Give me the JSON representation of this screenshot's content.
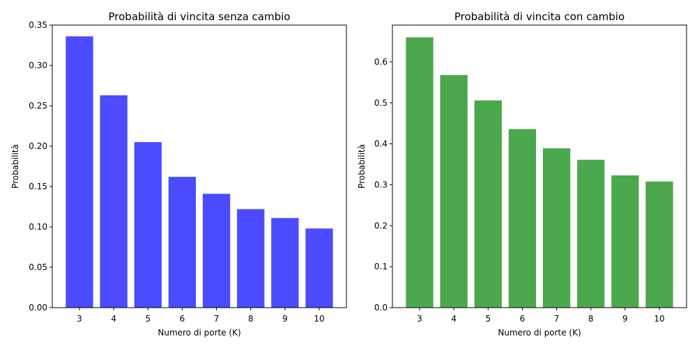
{
  "chart_data": [
    {
      "type": "bar",
      "title": "Probabilità di vincita senza cambio",
      "xlabel": "Numero di porte (K)",
      "ylabel": "Probabilità",
      "categories": [
        "3",
        "4",
        "5",
        "6",
        "7",
        "8",
        "9",
        "10"
      ],
      "values": [
        0.336,
        0.263,
        0.205,
        0.162,
        0.141,
        0.122,
        0.111,
        0.098
      ],
      "color": "#4b4bff",
      "ylim": [
        0,
        0.35
      ],
      "yticks": [
        0.0,
        0.05,
        0.1,
        0.15,
        0.2,
        0.25,
        0.3,
        0.35
      ],
      "ytick_labels": [
        "0.00",
        "0.05",
        "0.10",
        "0.15",
        "0.20",
        "0.25",
        "0.30",
        "0.35"
      ],
      "grid": false,
      "legend": "none"
    },
    {
      "type": "bar",
      "title": "Probabilità di vincita con cambio",
      "xlabel": "Numero di porte (K)",
      "ylabel": "Probabilità",
      "categories": [
        "3",
        "4",
        "5",
        "6",
        "7",
        "8",
        "9",
        "10"
      ],
      "values": [
        0.66,
        0.568,
        0.506,
        0.436,
        0.389,
        0.361,
        0.323,
        0.308
      ],
      "color": "#4ca84c",
      "ylim": [
        0,
        0.69
      ],
      "yticks": [
        0.0,
        0.1,
        0.2,
        0.3,
        0.4,
        0.5,
        0.6
      ],
      "ytick_labels": [
        "0.0",
        "0.1",
        "0.2",
        "0.3",
        "0.4",
        "0.5",
        "0.6"
      ],
      "grid": false,
      "legend": "none"
    }
  ]
}
